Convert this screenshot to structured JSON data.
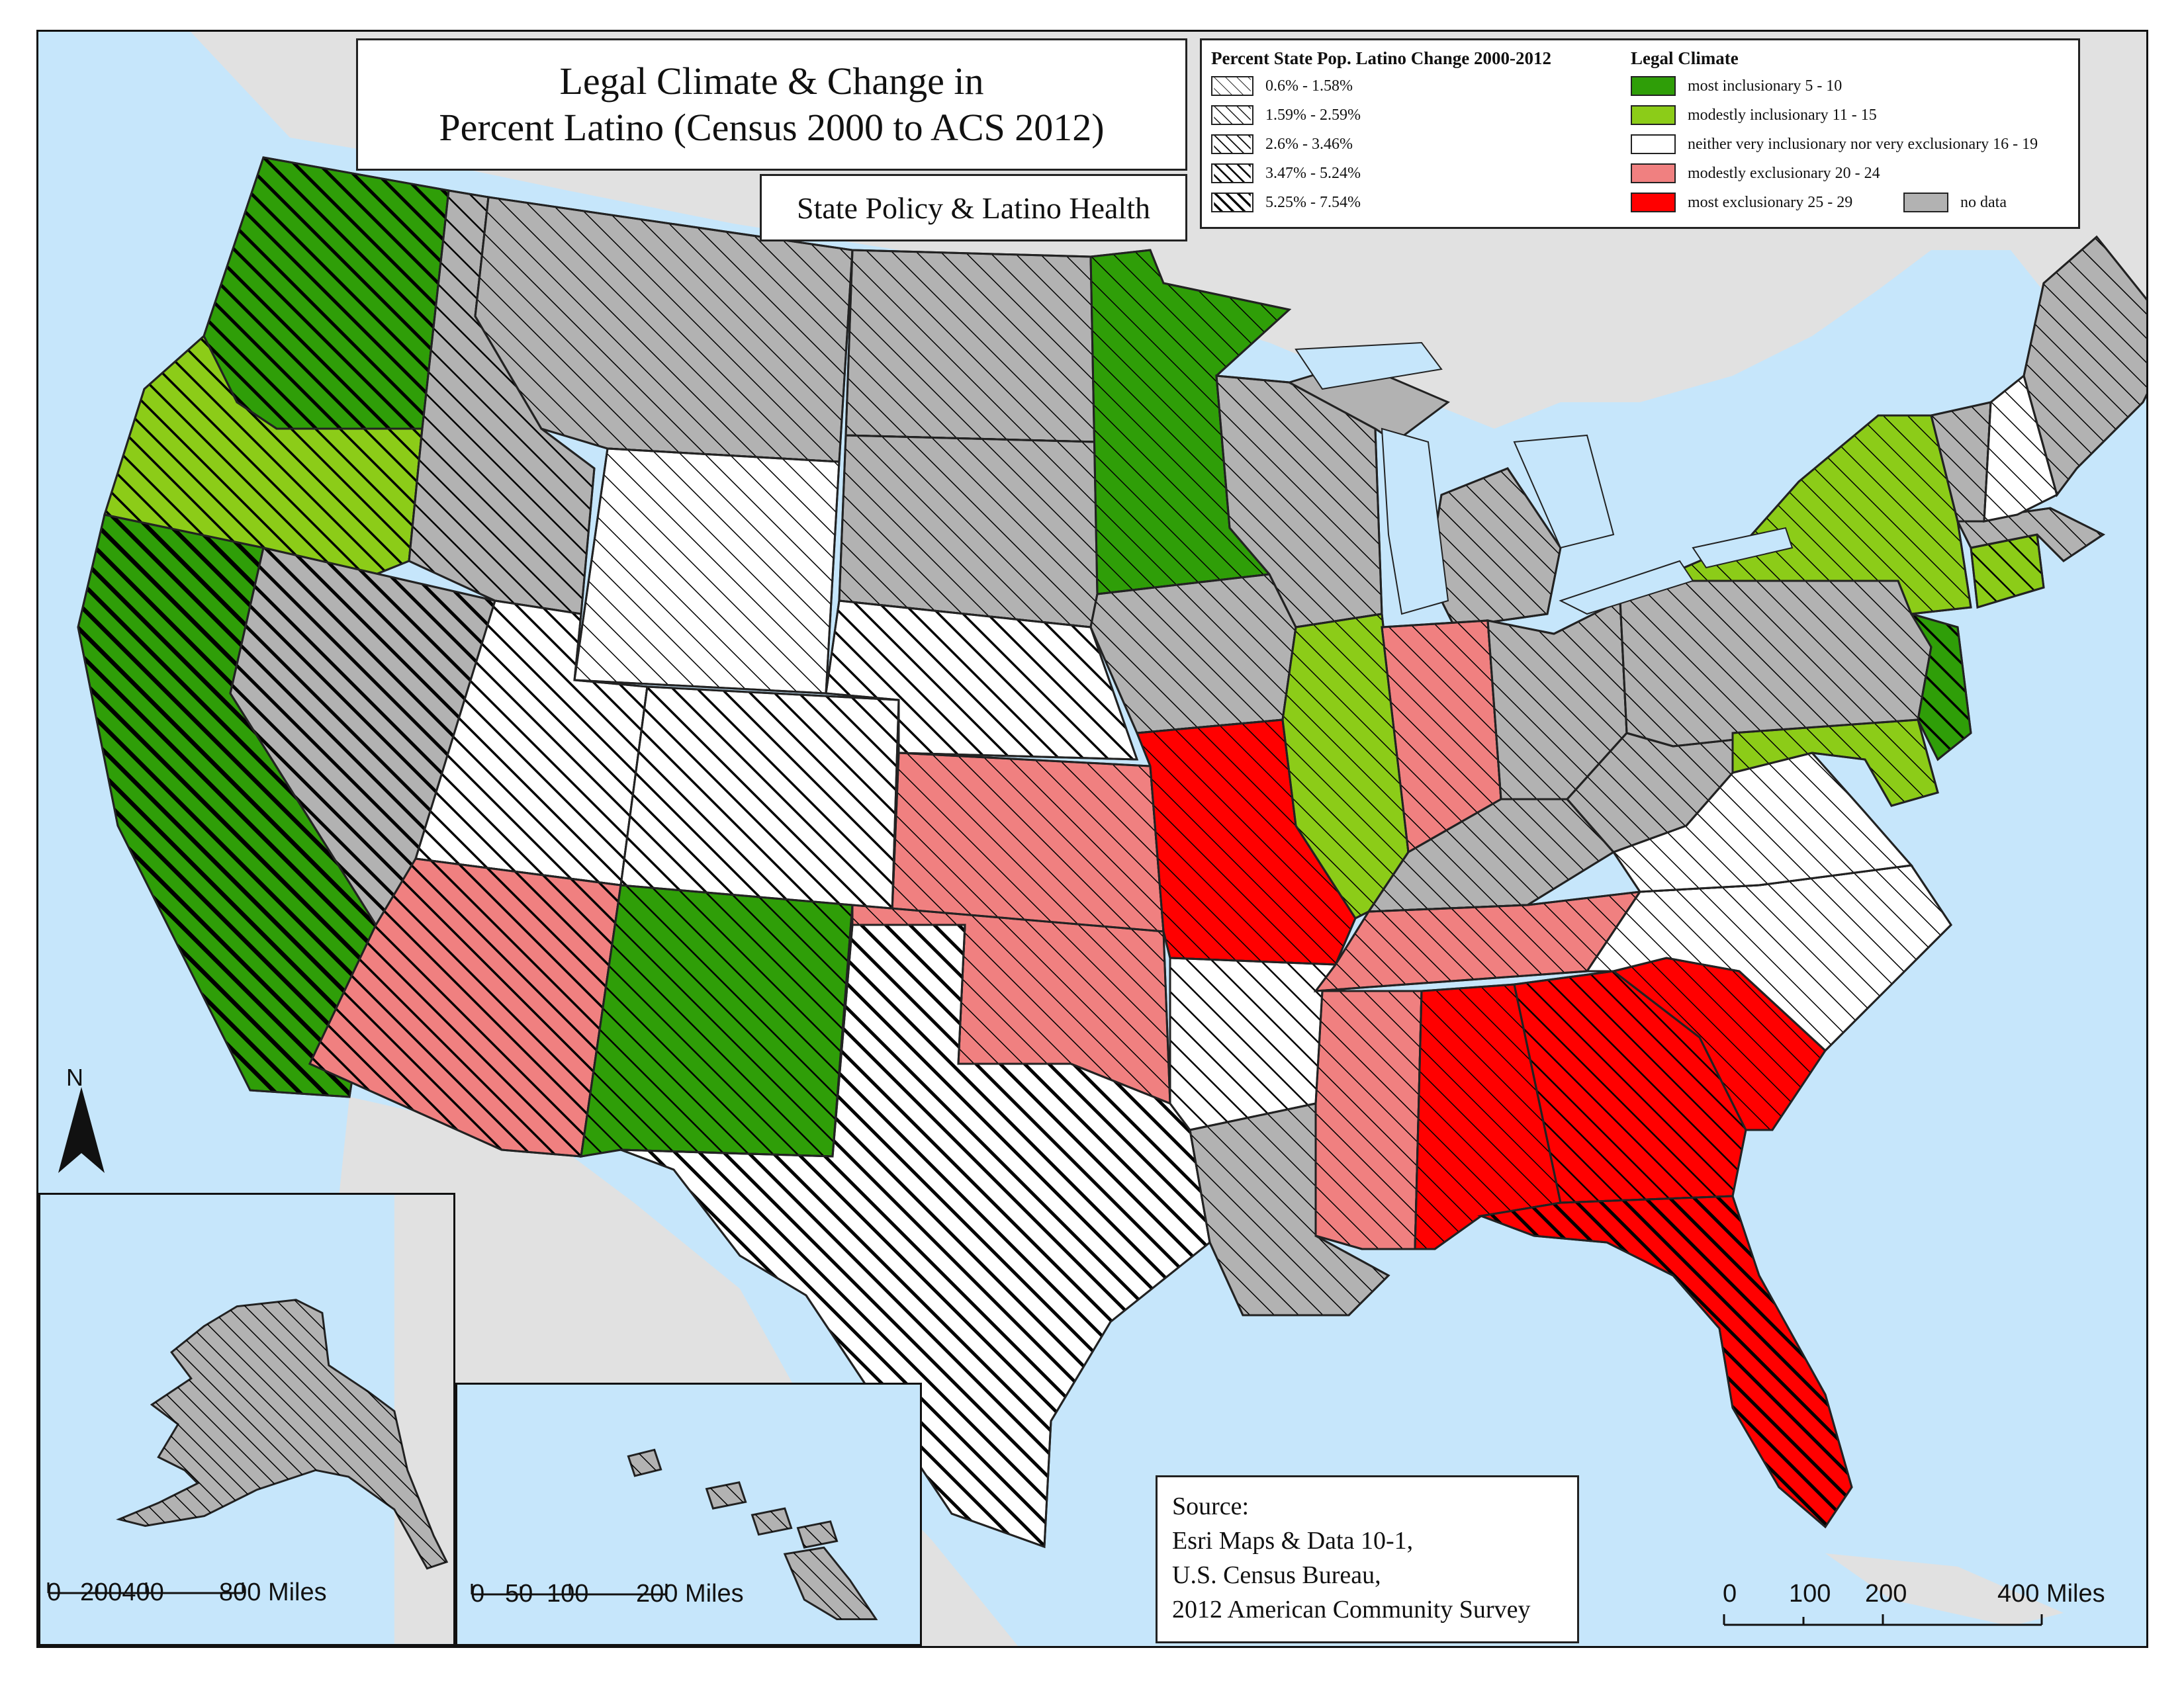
{
  "title": {
    "line1": "Legal Climate & Change in",
    "line2": "Percent Latino (Census 2000 to ACS 2012)"
  },
  "subtitle": "State Policy & Latino Health",
  "legend": {
    "change_heading": "Percent State Pop. Latino Change 2000-2012",
    "change_classes": [
      {
        "label": "0.6% - 1.58%",
        "level": 1
      },
      {
        "label": "1.59% - 2.59%",
        "level": 2
      },
      {
        "label": "2.6% - 3.46%",
        "level": 3
      },
      {
        "label": "3.47% - 5.24%",
        "level": 4
      },
      {
        "label": "5.25% - 7.54%",
        "level": 5
      }
    ],
    "climate_heading": "Legal Climate",
    "climate_classes": [
      {
        "label": "most inclusionary 5 - 10",
        "color": "#2f9e08"
      },
      {
        "label": "modestly inclusionary 11 - 15",
        "color": "#8ccc18"
      },
      {
        "label": "neither very inclusionary nor very exclusionary 16 - 19",
        "color": "#ffffff"
      },
      {
        "label": "modestly exclusionary 20 - 24",
        "color": "#f08080"
      },
      {
        "label": "most exclusionary 25 - 29",
        "color": "#ff0000"
      },
      {
        "label": "no data",
        "color": "#b2b2b2"
      }
    ]
  },
  "source": {
    "line1": "Source:",
    "line2": "Esri Maps & Data 10-1,",
    "line3": "U.S. Census Bureau,",
    "line4": "2012 American Community Survey"
  },
  "north_arrow": {
    "label": "N"
  },
  "scales": {
    "alaska": {
      "ticks": [
        "0",
        "200400",
        "800 Miles"
      ]
    },
    "hawaii": {
      "ticks": [
        "0",
        "50",
        "100",
        "200 Miles"
      ]
    },
    "conus": {
      "ticks": [
        "0",
        "100",
        "200",
        "400 Miles"
      ]
    }
  },
  "colors": {
    "ocean": "#c6e6fb",
    "land_outside": "#e1e1e1",
    "hatch_stroke": "#000000"
  }
}
